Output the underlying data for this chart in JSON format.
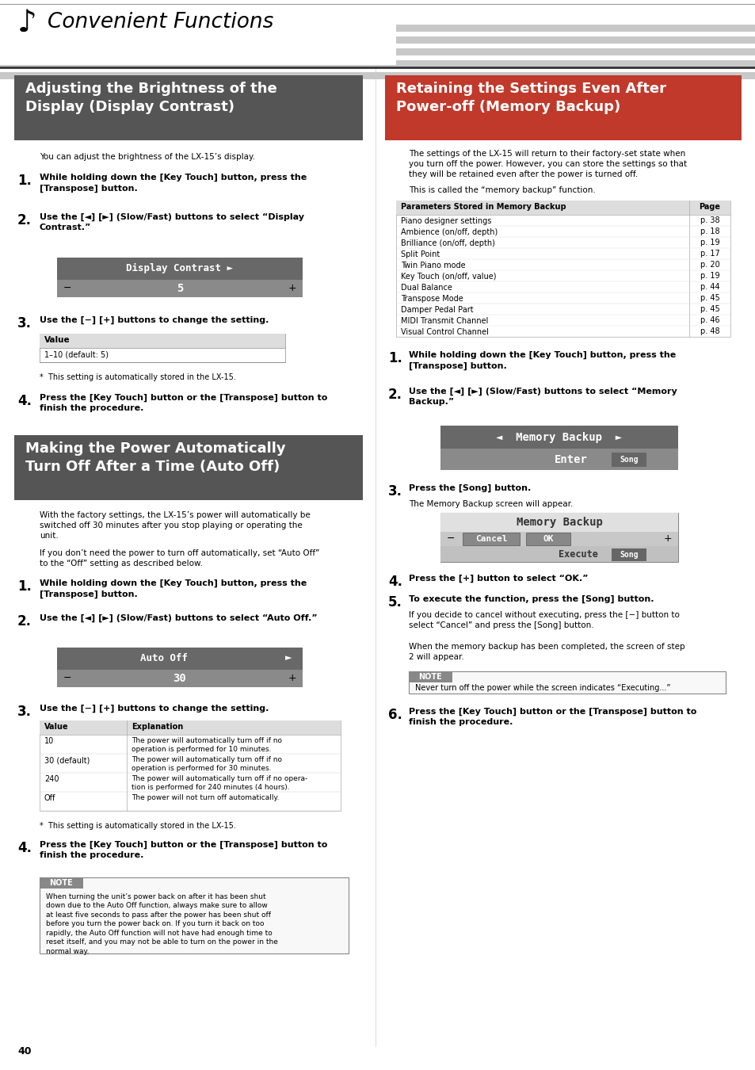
{
  "page_bg": "#ffffff",
  "section1_bg": "#555555",
  "section2_bg": "#555555",
  "section3_bg": "#c0392b",
  "light_gray": "#dddddd",
  "mid_gray": "#aaaaaa",
  "stripe_color": "#c8c8c8",
  "widget_top": "#777777",
  "widget_bot": "#999999",
  "widget_top2": "#888888",
  "note_bg": "#f0f0f0",
  "note_label_bg": "#888888",
  "table_header_bg": "#dddddd",
  "mem_rows": [
    [
      "Piano designer settings",
      "p. 38"
    ],
    [
      "Ambience (on/off, depth)",
      "p. 18"
    ],
    [
      "Brilliance (on/off, depth)",
      "p. 19"
    ],
    [
      "Split Point",
      "p. 17"
    ],
    [
      "Twin Piano mode",
      "p. 20"
    ],
    [
      "Key Touch (on/off, value)",
      "p. 19"
    ],
    [
      "Dual Balance",
      "p. 44"
    ],
    [
      "Transpose Mode",
      "p. 45"
    ],
    [
      "Damper Pedal Part",
      "p. 45"
    ],
    [
      "MIDI Transmit Channel",
      "p. 46"
    ],
    [
      "Visual Control Channel",
      "p. 48"
    ]
  ],
  "auto_rows": [
    [
      "10",
      "The power will automatically turn off if no\noperation is performed for 10 minutes."
    ],
    [
      "30 (default)",
      "The power will automatically turn off if no\noperation is performed for 30 minutes."
    ],
    [
      "240",
      "The power will automatically turn off if no opera-\ntion is performed for 240 minutes (4 hours)."
    ],
    [
      "Off",
      "The power will not turn off automatically."
    ]
  ]
}
